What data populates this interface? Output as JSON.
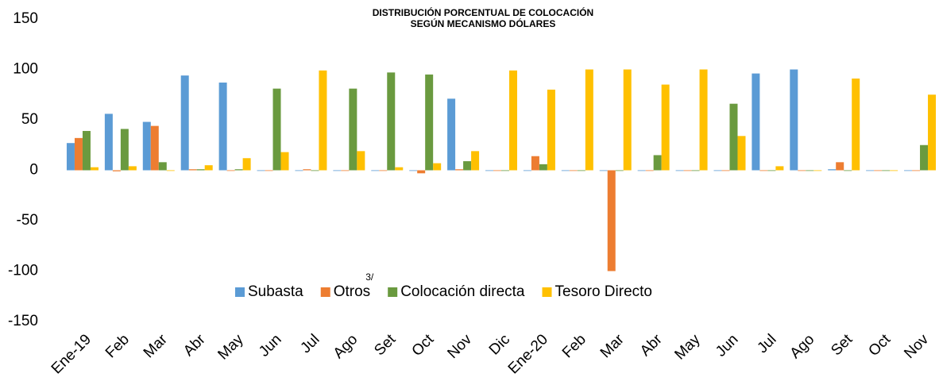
{
  "chart_data": {
    "type": "bar",
    "title": [
      "DISTRIBUCIÓN PORCENTUAL DE COLOCACIÓN",
      "SEGÚN MECANISMO DÓLARES"
    ],
    "categories": [
      "Ene-19",
      "Feb",
      "Mar",
      "Abr",
      "May",
      "Jun",
      "Jul",
      "Ago",
      "Set",
      "Oct",
      "Nov",
      "Dic",
      "Ene-20",
      "Feb",
      "Mar",
      "Abr",
      "May",
      "Jun",
      "Jul",
      "Ago",
      "Set",
      "Oct",
      "Nov"
    ],
    "series": [
      {
        "name": "Subasta",
        "color": "#5b9bd5",
        "values": [
          27,
          56,
          48,
          94,
          87,
          0,
          0,
          0,
          0,
          0,
          71,
          0,
          0,
          0,
          0,
          0,
          0,
          0,
          96,
          100,
          1,
          0,
          0
        ]
      },
      {
        "name": "Otros",
        "color": "#ed7d31",
        "values": [
          32,
          -1,
          44,
          1,
          0,
          0,
          1,
          0,
          0,
          -3,
          1,
          0,
          14,
          0,
          -100,
          0,
          0,
          0,
          0,
          0,
          8,
          0,
          0
        ]
      },
      {
        "name": "Colocación directa",
        "color": "#6a9a3f",
        "values": [
          39,
          41,
          8,
          1,
          1,
          81,
          0,
          81,
          97,
          95,
          9,
          0,
          6,
          0,
          0,
          15,
          0,
          66,
          0,
          0,
          0,
          0,
          25
        ]
      },
      {
        "name": "Tesoro Directo",
        "color": "#ffc000",
        "values": [
          3,
          4,
          0,
          5,
          12,
          18,
          99,
          19,
          3,
          7,
          19,
          99,
          80,
          100,
          100,
          85,
          100,
          34,
          4,
          0,
          91,
          0,
          75
        ]
      }
    ],
    "legend_note": "3/",
    "ylim": [
      -150,
      150
    ],
    "yticks": [
      -150,
      -100,
      -50,
      0,
      50,
      100,
      150
    ],
    "grid": false,
    "legend": "bottom"
  }
}
